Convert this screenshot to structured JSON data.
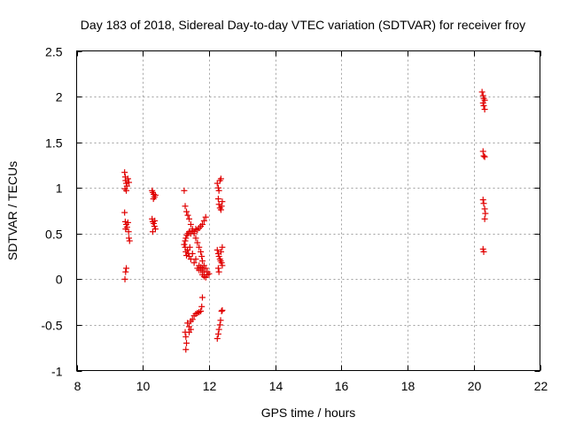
{
  "chart_data": {
    "type": "scatter",
    "title": "Day 183 of 2018, Sidereal Day-to-day VTEC variation (SDTVAR) for receiver froy",
    "xlabel": "GPS time / hours",
    "ylabel": "SDTVAR / TECUs",
    "xlim": [
      8,
      22
    ],
    "ylim": [
      -1,
      2.5
    ],
    "xticks": [
      "8",
      "10",
      "12",
      "14",
      "16",
      "18",
      "20",
      "22"
    ],
    "yticks": [
      "-1",
      "-0.5",
      "0",
      "0.5",
      "1",
      "1.5",
      "2",
      "2.5"
    ],
    "grid": true,
    "marker": "+",
    "color": "#e00000",
    "series": [
      {
        "name": "SDTVAR",
        "points": [
          [
            9.45,
            1.17
          ],
          [
            9.47,
            1.12
          ],
          [
            9.48,
            1.08
          ],
          [
            9.5,
            1.05
          ],
          [
            9.52,
            1.02
          ],
          [
            9.46,
            0.99
          ],
          [
            9.55,
            1.1
          ],
          [
            9.58,
            1.06
          ],
          [
            9.5,
            0.97
          ],
          [
            9.45,
            0.73
          ],
          [
            9.47,
            0.63
          ],
          [
            9.5,
            0.6
          ],
          [
            9.52,
            0.57
          ],
          [
            9.48,
            0.55
          ],
          [
            9.55,
            0.62
          ],
          [
            9.57,
            0.52
          ],
          [
            9.58,
            0.45
          ],
          [
            9.6,
            0.42
          ],
          [
            9.5,
            0.12
          ],
          [
            9.48,
            0.08
          ],
          [
            9.46,
            0.0
          ],
          [
            10.28,
            0.97
          ],
          [
            10.3,
            0.95
          ],
          [
            10.33,
            0.93
          ],
          [
            10.35,
            0.9
          ],
          [
            10.38,
            0.92
          ],
          [
            10.32,
            0.88
          ],
          [
            10.28,
            0.66
          ],
          [
            10.3,
            0.63
          ],
          [
            10.33,
            0.61
          ],
          [
            10.35,
            0.58
          ],
          [
            10.38,
            0.55
          ],
          [
            10.3,
            0.52
          ],
          [
            10.36,
            0.64
          ],
          [
            11.25,
            0.97
          ],
          [
            11.28,
            0.8
          ],
          [
            11.32,
            0.74
          ],
          [
            11.36,
            0.7
          ],
          [
            11.4,
            0.66
          ],
          [
            11.45,
            0.6
          ],
          [
            11.5,
            0.55
          ],
          [
            11.55,
            0.5
          ],
          [
            11.6,
            0.45
          ],
          [
            11.65,
            0.4
          ],
          [
            11.7,
            0.35
          ],
          [
            11.75,
            0.3
          ],
          [
            11.78,
            0.25
          ],
          [
            11.8,
            0.2
          ],
          [
            11.85,
            0.15
          ],
          [
            11.9,
            0.12
          ],
          [
            11.95,
            0.08
          ],
          [
            12.0,
            0.06
          ],
          [
            11.25,
            0.38
          ],
          [
            11.28,
            0.42
          ],
          [
            11.3,
            0.45
          ],
          [
            11.33,
            0.48
          ],
          [
            11.36,
            0.5
          ],
          [
            11.4,
            0.52
          ],
          [
            11.45,
            0.5
          ],
          [
            11.5,
            0.53
          ],
          [
            11.55,
            0.52
          ],
          [
            11.6,
            0.55
          ],
          [
            11.65,
            0.54
          ],
          [
            11.7,
            0.56
          ],
          [
            11.75,
            0.58
          ],
          [
            11.8,
            0.6
          ],
          [
            11.85,
            0.64
          ],
          [
            11.9,
            0.68
          ],
          [
            11.28,
            0.35
          ],
          [
            11.3,
            0.3
          ],
          [
            11.32,
            0.26
          ],
          [
            11.35,
            0.32
          ],
          [
            11.38,
            0.28
          ],
          [
            11.4,
            0.25
          ],
          [
            11.42,
            0.35
          ],
          [
            11.45,
            0.22
          ],
          [
            11.5,
            0.28
          ],
          [
            11.55,
            0.18
          ],
          [
            11.6,
            0.22
          ],
          [
            11.65,
            0.12
          ],
          [
            11.7,
            0.15
          ],
          [
            11.75,
            0.1
          ],
          [
            11.8,
            0.05
          ],
          [
            11.85,
            0.03
          ],
          [
            11.9,
            0.02
          ],
          [
            11.95,
            0.05
          ],
          [
            11.7,
            0.1
          ],
          [
            11.75,
            0.13
          ],
          [
            11.8,
            0.12
          ],
          [
            11.85,
            0.08
          ],
          [
            11.28,
            -0.58
          ],
          [
            11.3,
            -0.63
          ],
          [
            11.32,
            -0.7
          ],
          [
            11.3,
            -0.77
          ],
          [
            11.35,
            -0.48
          ],
          [
            11.4,
            -0.52
          ],
          [
            11.45,
            -0.46
          ],
          [
            11.5,
            -0.44
          ],
          [
            11.55,
            -0.4
          ],
          [
            11.6,
            -0.38
          ],
          [
            11.65,
            -0.37
          ],
          [
            11.7,
            -0.36
          ],
          [
            11.75,
            -0.35
          ],
          [
            11.78,
            -0.3
          ],
          [
            11.8,
            -0.2
          ],
          [
            11.4,
            -0.58
          ],
          [
            11.45,
            -0.55
          ],
          [
            12.25,
            1.05
          ],
          [
            12.28,
            1.0
          ],
          [
            12.3,
            0.97
          ],
          [
            12.33,
            1.08
          ],
          [
            12.36,
            1.1
          ],
          [
            12.28,
            0.88
          ],
          [
            12.3,
            0.82
          ],
          [
            12.33,
            0.78
          ],
          [
            12.36,
            0.76
          ],
          [
            12.38,
            0.8
          ],
          [
            12.4,
            0.85
          ],
          [
            12.25,
            0.32
          ],
          [
            12.28,
            0.28
          ],
          [
            12.3,
            0.25
          ],
          [
            12.33,
            0.22
          ],
          [
            12.35,
            0.2
          ],
          [
            12.38,
            0.18
          ],
          [
            12.4,
            0.15
          ],
          [
            12.28,
            0.12
          ],
          [
            12.3,
            0.08
          ],
          [
            12.36,
            0.3
          ],
          [
            12.4,
            0.35
          ],
          [
            12.25,
            -0.65
          ],
          [
            12.28,
            -0.6
          ],
          [
            12.3,
            -0.55
          ],
          [
            12.33,
            -0.5
          ],
          [
            12.35,
            -0.45
          ],
          [
            12.38,
            -0.35
          ],
          [
            12.4,
            -0.34
          ],
          [
            20.25,
            2.05
          ],
          [
            20.28,
            2.01
          ],
          [
            20.3,
            1.98
          ],
          [
            20.33,
            1.96
          ],
          [
            20.28,
            1.93
          ],
          [
            20.3,
            1.9
          ],
          [
            20.33,
            1.86
          ],
          [
            20.28,
            1.4
          ],
          [
            20.3,
            1.35
          ],
          [
            20.33,
            1.34
          ],
          [
            20.28,
            0.87
          ],
          [
            20.3,
            0.83
          ],
          [
            20.33,
            0.77
          ],
          [
            20.35,
            0.72
          ],
          [
            20.33,
            0.66
          ],
          [
            20.28,
            0.33
          ],
          [
            20.3,
            0.3
          ]
        ]
      }
    ]
  }
}
